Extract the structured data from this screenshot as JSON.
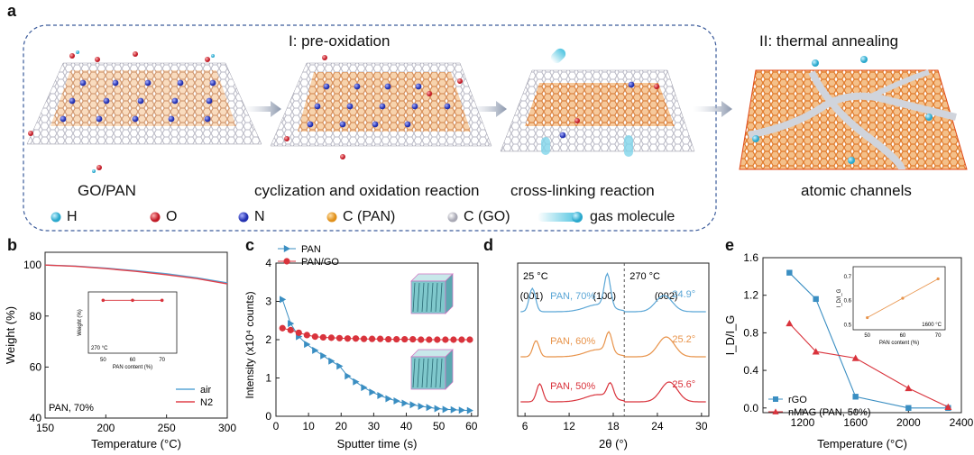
{
  "panel_a": {
    "letter": "a",
    "stage1_title": "I: pre-oxidation",
    "stage2_title": "II:  thermal annealing",
    "captions": [
      "GO/PAN",
      "cyclization and oxidation reaction",
      "cross-linking reaction",
      "atomic channels"
    ],
    "legend": [
      {
        "label": "H",
        "color": "#4cc3e0"
      },
      {
        "label": "O",
        "color": "#d9333c"
      },
      {
        "label": "N",
        "color": "#3a45c8"
      },
      {
        "label": "C (PAN)",
        "color": "#f0a63a"
      },
      {
        "label": "C (GO)",
        "color": "#c8c8d0"
      },
      {
        "label": "gas molecule",
        "color": "#4cc3e0"
      }
    ]
  },
  "panel_b": {
    "letter": "b"
  },
  "panel_c": {
    "letter": "c"
  },
  "panel_d": {
    "letter": "d"
  },
  "panel_e": {
    "letter": "e"
  },
  "chart_data": [
    {
      "id": "b",
      "type": "line",
      "xlabel": "Temperature (°C)",
      "ylabel": "Weight (%)",
      "xlim": [
        150,
        300
      ],
      "ylim": [
        40,
        105
      ],
      "xticks": [
        "150",
        "200",
        "250",
        "300"
      ],
      "yticks": [
        "40",
        "60",
        "80",
        "100"
      ],
      "annotation": "PAN, 70%",
      "series": [
        {
          "name": "air",
          "color": "#5aa6d6",
          "x": [
            150,
            175,
            200,
            225,
            250,
            275,
            300
          ],
          "y": [
            100,
            99.6,
            98.8,
            97.8,
            96.6,
            95.0,
            93.0
          ]
        },
        {
          "name": "N2",
          "color": "#e0404a",
          "x": [
            150,
            175,
            200,
            225,
            250,
            275,
            300
          ],
          "y": [
            100,
            99.5,
            98.6,
            97.5,
            96.2,
            94.7,
            92.6
          ]
        }
      ],
      "inset": {
        "xlabel": "PAN content (%)",
        "ylabel": "Weight (%)",
        "annotation": "270 °C",
        "xticks": [
          "50",
          "60",
          "70"
        ],
        "yticks": [
          "0",
          "50",
          "100"
        ],
        "x": [
          50,
          60,
          70
        ],
        "y": [
          95,
          95,
          95
        ]
      }
    },
    {
      "id": "c",
      "type": "line",
      "xlabel": "Sputter time (s)",
      "ylabel": "Intensity (x10⁴ counts)",
      "xlim": [
        0,
        62
      ],
      "ylim": [
        0,
        4
      ],
      "xticks": [
        "0",
        "10",
        "20",
        "30",
        "40",
        "50",
        "60"
      ],
      "yticks": [
        "0",
        "1",
        "2",
        "3",
        "4"
      ],
      "series": [
        {
          "name": "PAN",
          "color": "#3a8ec2",
          "x": [
            2,
            4.5,
            7,
            9.5,
            12,
            14.5,
            17,
            19.5,
            22,
            24.5,
            27,
            29.5,
            32,
            34.5,
            37,
            39.5,
            42,
            44.5,
            47,
            49.5,
            52,
            54.5,
            57,
            59.5
          ],
          "y": [
            3.05,
            2.42,
            2.08,
            1.88,
            1.72,
            1.58,
            1.44,
            1.31,
            1.05,
            0.9,
            0.75,
            0.63,
            0.54,
            0.46,
            0.4,
            0.34,
            0.3,
            0.26,
            0.23,
            0.2,
            0.18,
            0.17,
            0.16,
            0.15
          ]
        },
        {
          "name": "PAN/GO",
          "color": "#d9333c",
          "x": [
            2,
            4.5,
            7,
            9.5,
            12,
            14.5,
            17,
            19.5,
            22,
            24.5,
            27,
            29.5,
            32,
            34.5,
            37,
            39.5,
            42,
            44.5,
            47,
            49.5,
            52,
            54.5,
            57,
            59.5
          ],
          "y": [
            2.3,
            2.25,
            2.18,
            2.12,
            2.08,
            2.06,
            2.05,
            2.04,
            2.03,
            2.03,
            2.02,
            2.02,
            2.02,
            2.01,
            2.01,
            2.01,
            2.01,
            2.0,
            2.0,
            2.0,
            2.0,
            2.0,
            2.0,
            2.0
          ]
        }
      ]
    },
    {
      "id": "d",
      "type": "line",
      "xlabel": "2θ (°)",
      "xlim": [
        5,
        31
      ],
      "xticks": [
        "6",
        "12",
        "18",
        "24",
        "30"
      ],
      "texts": {
        "left": "25 °C",
        "right": "270 °C",
        "p001": "(001)",
        "p100": "(100)",
        "p002": "(002)"
      },
      "series": [
        {
          "name": "PAN, 70%",
          "peak": "24.9°",
          "color": "#5aa6d6"
        },
        {
          "name": "PAN, 60%",
          "peak": "25.2°",
          "color": "#e8934a"
        },
        {
          "name": "PAN, 50%",
          "peak": "25.6°",
          "color": "#d9333c"
        }
      ]
    },
    {
      "id": "e",
      "type": "line",
      "xlabel": "Temperature (°C)",
      "ylabel": "I_D/I_G",
      "xlim": [
        900,
        2400
      ],
      "ylim": [
        -0.05,
        1.6
      ],
      "xticks": [
        "1200",
        "1600",
        "2000",
        "2400"
      ],
      "yticks": [
        "0.0",
        "0.4",
        "0.8",
        "1.2",
        "1.6"
      ],
      "series": [
        {
          "name": "rGO",
          "color": "#3a8ec2",
          "x": [
            1100,
            1300,
            1600,
            2000,
            2300
          ],
          "y": [
            1.44,
            1.16,
            0.12,
            0.0,
            0.0
          ]
        },
        {
          "name": "nMAG (PAN, 50%)",
          "color": "#d9333c",
          "x": [
            1100,
            1300,
            1600,
            2000,
            2300
          ],
          "y": [
            0.9,
            0.6,
            0.53,
            0.21,
            0.01
          ]
        }
      ],
      "inset": {
        "xlabel": "PAN content (%)",
        "ylabel": "I_D/I_G",
        "annotation": "1600 °C",
        "xticks": [
          "50",
          "60",
          "70"
        ],
        "yticks": [
          "0.5",
          "0.6",
          "0.7"
        ],
        "x": [
          50,
          60,
          70
        ],
        "y": [
          0.53,
          0.61,
          0.69
        ]
      }
    }
  ]
}
